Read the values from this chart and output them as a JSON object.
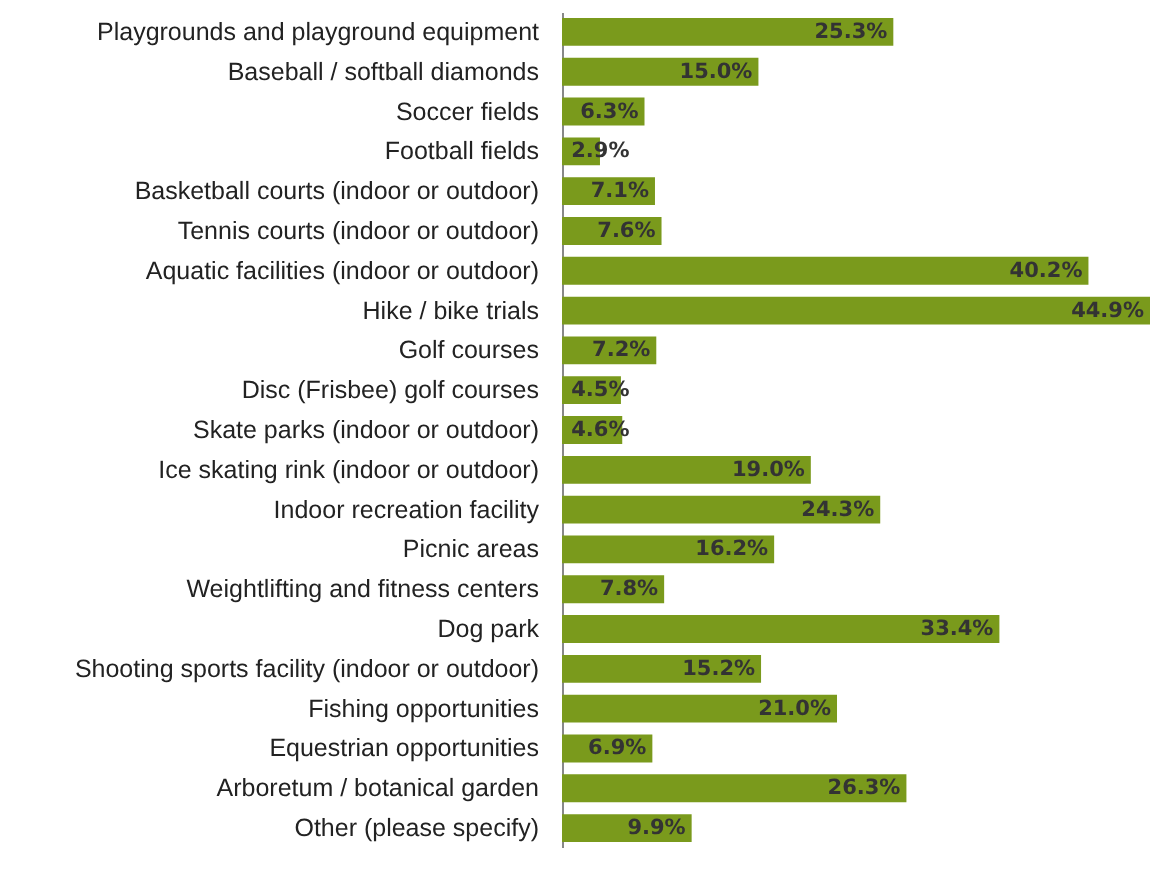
{
  "chart_data": {
    "type": "bar",
    "orientation": "horizontal",
    "color": "#7a9a1c",
    "categories": [
      "Playgrounds and playground equipment",
      "Baseball / softball diamonds",
      "Soccer fields",
      "Football fields",
      "Basketball courts (indoor or outdoor)",
      "Tennis courts (indoor or outdoor)",
      "Aquatic facilities (indoor or outdoor)",
      "Hike / bike trials",
      "Golf courses",
      "Disc (Frisbee) golf courses",
      "Skate parks (indoor or outdoor)",
      "Ice skating rink (indoor or outdoor)",
      "Indoor recreation facility",
      "Picnic areas",
      "Weightlifting and fitness centers",
      "Dog park",
      "Shooting sports facility (indoor or outdoor)",
      "Fishing opportunities",
      "Equestrian opportunities",
      "Arboretum / botanical garden",
      "Other (please specify)"
    ],
    "values": [
      25.3,
      15.0,
      6.3,
      2.9,
      7.1,
      7.6,
      40.2,
      44.9,
      7.2,
      4.5,
      4.6,
      19.0,
      24.3,
      16.2,
      7.8,
      33.4,
      15.2,
      21.0,
      6.9,
      26.3,
      9.9
    ],
    "value_labels": [
      "25.3%",
      "15.0%",
      "6.3%",
      "2.9%",
      "7.1%",
      "7.6%",
      "40.2%",
      "44.9%",
      "7.2%",
      "4.5%",
      "4.6%",
      "19.0%",
      "24.3%",
      "16.2%",
      "7.8%",
      "33.4%",
      "15.2%",
      "21.0%",
      "6.9%",
      "26.3%",
      "9.9%"
    ]
  }
}
